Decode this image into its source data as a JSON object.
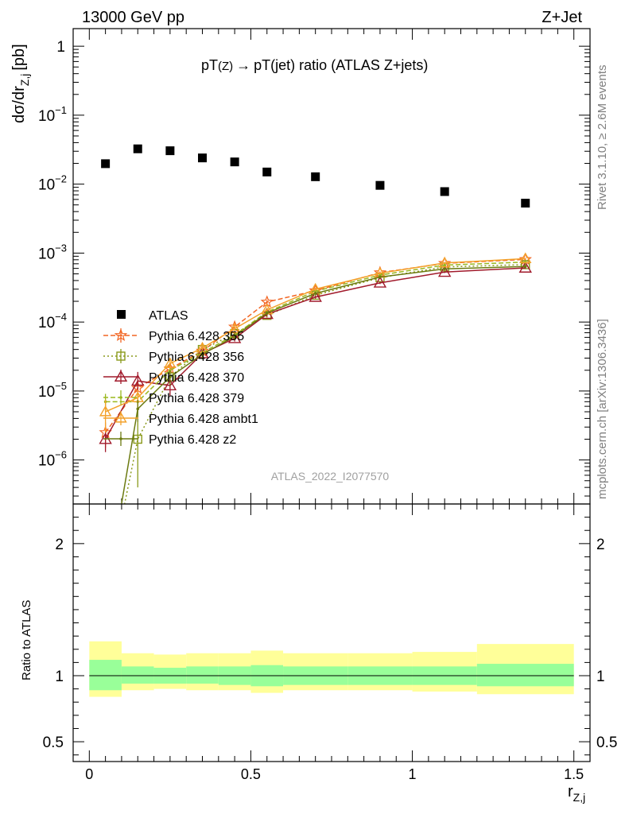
{
  "header": {
    "left": "13000 GeV pp",
    "right": "Z+Jet",
    "title_main": "pT",
    "title_sub": "(Z)",
    "title_arrow": "→",
    "title_rest": "pT(jet) ratio (ATLAS Z+jets)",
    "watermark": "ATLAS_2022_I2077570",
    "side_top": "Rivet 3.1.10, ≥ 2.6M events",
    "side_bottom": "mcplots.cern.ch [arXiv:1306.3436]"
  },
  "chart_data": {
    "type": "scatter",
    "x_label": "r",
    "x_label_sub": "Z,j",
    "y_label_main": "dσ/dr",
    "y_label_sub": "Z,j",
    "y_label_unit": "[pb]",
    "ratio_label": "Ratio to ATLAS",
    "xlim": [
      -0.05,
      1.55
    ],
    "ylim_log": [
      2.3e-07,
      1.8
    ],
    "ratio_ylim": [
      0.35,
      2.3
    ],
    "y_scale": "log",
    "x_ticks": [
      "0",
      "0.5",
      "1",
      "1.5"
    ],
    "y_ticks": [
      {
        "value": 1,
        "base": "1",
        "exp": ""
      },
      {
        "value": 0.1,
        "base": "10",
        "exp": "−1"
      },
      {
        "value": 0.01,
        "base": "10",
        "exp": "−2"
      },
      {
        "value": 0.001,
        "base": "10",
        "exp": "−3"
      },
      {
        "value": 0.0001,
        "base": "10",
        "exp": "−4"
      },
      {
        "value": 1e-05,
        "base": "10",
        "exp": "−5"
      },
      {
        "value": 1e-06,
        "base": "10",
        "exp": "−6"
      }
    ],
    "ratio_ticks": [
      {
        "value": 2,
        "label": "2"
      },
      {
        "value": 1,
        "label": "1"
      },
      {
        "value": 0.5,
        "label": "0.5"
      }
    ],
    "bins": [
      [
        0,
        0.1
      ],
      [
        0.1,
        0.2
      ],
      [
        0.2,
        0.3
      ],
      [
        0.3,
        0.4
      ],
      [
        0.4,
        0.5
      ],
      [
        0.5,
        0.6
      ],
      [
        0.6,
        0.8
      ],
      [
        0.8,
        1.0
      ],
      [
        1.0,
        1.2
      ],
      [
        1.2,
        1.5
      ]
    ],
    "x": [
      0.05,
      0.15,
      0.25,
      0.35,
      0.45,
      0.55,
      0.7,
      0.9,
      1.1,
      1.35
    ],
    "data": {
      "name": "ATLAS",
      "values": [
        0.0198,
        0.0325,
        0.0305,
        0.024,
        0.021,
        0.015,
        0.0128,
        0.0096,
        0.0078,
        0.0053
      ],
      "stat_band": [
        [
          0.89,
          1.12
        ],
        [
          0.94,
          1.07
        ],
        [
          0.94,
          1.06
        ],
        [
          0.94,
          1.07
        ],
        [
          0.93,
          1.07
        ],
        [
          0.92,
          1.08
        ],
        [
          0.93,
          1.07
        ],
        [
          0.93,
          1.07
        ],
        [
          0.93,
          1.07
        ],
        [
          0.92,
          1.09
        ]
      ],
      "total_band": [
        [
          0.84,
          1.26
        ],
        [
          0.89,
          1.17
        ],
        [
          0.9,
          1.16
        ],
        [
          0.89,
          1.17
        ],
        [
          0.89,
          1.17
        ],
        [
          0.87,
          1.19
        ],
        [
          0.89,
          1.17
        ],
        [
          0.89,
          1.17
        ],
        [
          0.88,
          1.18
        ],
        [
          0.86,
          1.24
        ]
      ]
    },
    "series": [
      {
        "name": "Pythia 6.428 355",
        "color": "#f26522",
        "dash": "6,3",
        "marker": "star",
        "values": [
          2.5e-06,
          1.1e-05,
          2.1e-05,
          3.8e-05,
          8.5e-05,
          0.000195,
          0.000285,
          0.00052,
          0.00071,
          0.00081
        ],
        "err": [
          0.4,
          0.25,
          0.2,
          0.15,
          0.1,
          0.07,
          0.05,
          0.04,
          0.03,
          0.03
        ]
      },
      {
        "name": "Pythia 6.428 356",
        "color": "#8a9a1b",
        "dash": "2,3",
        "marker": "square",
        "values": [
          1e-08,
          2e-06,
          1.6e-05,
          4e-05,
          6.8e-05,
          0.000125,
          0.000245,
          0.00044,
          0.00063,
          0.00068
        ],
        "err": [
          0.9,
          0.8,
          0.25,
          0.15,
          0.1,
          0.07,
          0.05,
          0.04,
          0.03,
          0.03
        ]
      },
      {
        "name": "Pythia 6.428 370",
        "color": "#a11a2b",
        "dash": "",
        "marker": "triangle",
        "values": [
          2e-06,
          1.4e-05,
          1.2e-05,
          3.5e-05,
          5.8e-05,
          0.00013,
          0.00023,
          0.00037,
          0.00053,
          0.00061
        ],
        "err": [
          0.35,
          0.35,
          0.3,
          0.15,
          0.1,
          0.07,
          0.05,
          0.04,
          0.03,
          0.03
        ]
      },
      {
        "name": "Pythia 6.428 379",
        "color": "#9ab81e",
        "dash": "6,3",
        "marker": "dot",
        "values": [
          7e-06,
          7e-06,
          2e-05,
          3.6e-05,
          6.5e-05,
          0.00014,
          0.00028,
          0.00048,
          0.00067,
          0.00074
        ],
        "err": [
          0.3,
          0.3,
          0.2,
          0.15,
          0.1,
          0.07,
          0.05,
          0.04,
          0.03,
          0.03
        ]
      },
      {
        "name": "Pythia 6.428 ambt1",
        "color": "#f3a12a",
        "dash": "",
        "marker": "triangle-open",
        "values": [
          5e-06,
          8e-06,
          2.5e-05,
          4.2e-05,
          8e-05,
          0.00015,
          0.0003,
          0.00051,
          0.00072,
          0.00083
        ],
        "err": [
          0.5,
          0.3,
          0.2,
          0.15,
          0.1,
          0.07,
          0.05,
          0.04,
          0.03,
          0.03
        ]
      },
      {
        "name": "Pythia 6.428 z2",
        "color": "#6b7a10",
        "dash": "",
        "marker": "dot",
        "values": [
          1e-08,
          5.5e-06,
          1.6e-05,
          3.4e-05,
          6.2e-05,
          0.000135,
          0.00026,
          0.00045,
          0.00059,
          0.00064
        ],
        "err": [
          0.9,
          0.35,
          0.25,
          0.15,
          0.1,
          0.07,
          0.05,
          0.04,
          0.03,
          0.03
        ]
      }
    ],
    "legend_position": "middle-left",
    "colors": {
      "stat_band": "#99ff99",
      "total_band": "#ffff99",
      "data_marker": "#000000"
    }
  }
}
